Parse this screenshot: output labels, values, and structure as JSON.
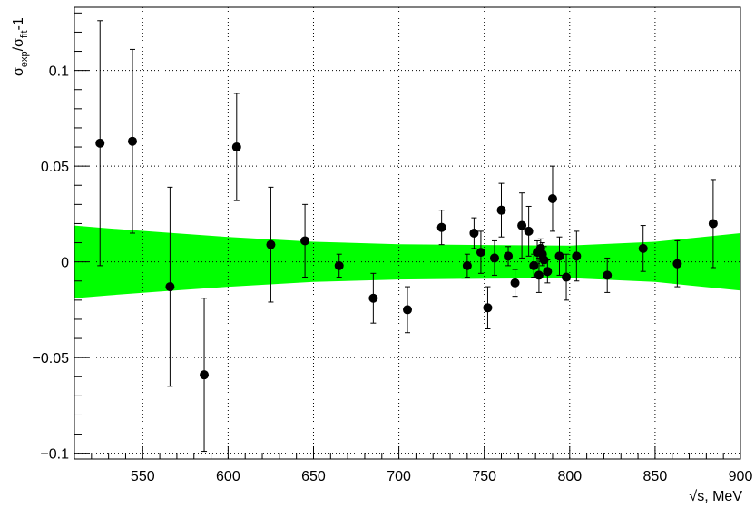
{
  "chart_data": {
    "type": "scatter",
    "xlabel": "√s, MeV",
    "ylabel": "σexp/σfit-1",
    "xlim": [
      510,
      900
    ],
    "ylim": [
      -0.103,
      0.133
    ],
    "grid": true,
    "x_ticks": [
      550,
      600,
      650,
      700,
      750,
      800,
      850,
      900
    ],
    "y_ticks": [
      -0.1,
      -0.05,
      0,
      0.05,
      0.1
    ],
    "x_tick_labels": [
      "550",
      "600",
      "650",
      "700",
      "750",
      "800",
      "850",
      "900"
    ],
    "y_tick_labels": [
      "−0.1",
      "−0.05",
      "0",
      "0.05",
      "0.1"
    ],
    "points": [
      {
        "x": 525,
        "y": 0.062,
        "err": 0.064
      },
      {
        "x": 544,
        "y": 0.063,
        "err": 0.048
      },
      {
        "x": 566,
        "y": -0.013,
        "err": 0.052
      },
      {
        "x": 586,
        "y": -0.059,
        "err": 0.04
      },
      {
        "x": 605,
        "y": 0.06,
        "err": 0.028
      },
      {
        "x": 625,
        "y": 0.009,
        "err": 0.03
      },
      {
        "x": 645,
        "y": 0.011,
        "err": 0.019
      },
      {
        "x": 665,
        "y": -0.002,
        "err": 0.006
      },
      {
        "x": 685,
        "y": -0.019,
        "err": 0.013
      },
      {
        "x": 705,
        "y": -0.025,
        "err": 0.012
      },
      {
        "x": 725,
        "y": 0.018,
        "err": 0.009
      },
      {
        "x": 740,
        "y": -0.002,
        "err": 0.006
      },
      {
        "x": 744,
        "y": 0.015,
        "err": 0.008
      },
      {
        "x": 748,
        "y": 0.005,
        "err": 0.011
      },
      {
        "x": 752,
        "y": -0.024,
        "err": 0.011
      },
      {
        "x": 756,
        "y": 0.002,
        "err": 0.009
      },
      {
        "x": 760,
        "y": 0.027,
        "err": 0.014
      },
      {
        "x": 764,
        "y": 0.003,
        "err": 0.005
      },
      {
        "x": 768,
        "y": -0.011,
        "err": 0.007
      },
      {
        "x": 772,
        "y": 0.019,
        "err": 0.017
      },
      {
        "x": 776,
        "y": 0.016,
        "err": 0.013
      },
      {
        "x": 779,
        "y": -0.002,
        "err": 0.006
      },
      {
        "x": 781,
        "y": 0.005,
        "err": 0.006
      },
      {
        "x": 782,
        "y": -0.007,
        "err": 0.009
      },
      {
        "x": 783,
        "y": 0.007,
        "err": 0.005
      },
      {
        "x": 784,
        "y": 0.004,
        "err": 0.006
      },
      {
        "x": 785,
        "y": 0.001,
        "err": 0.007
      },
      {
        "x": 787,
        "y": -0.005,
        "err": 0.006
      },
      {
        "x": 790,
        "y": 0.033,
        "err": 0.017
      },
      {
        "x": 794,
        "y": 0.003,
        "err": 0.01
      },
      {
        "x": 798,
        "y": -0.008,
        "err": 0.012
      },
      {
        "x": 804,
        "y": 0.003,
        "err": 0.013
      },
      {
        "x": 822,
        "y": -0.007,
        "err": 0.009
      },
      {
        "x": 843,
        "y": 0.007,
        "err": 0.012
      },
      {
        "x": 863,
        "y": -0.001,
        "err": 0.012
      },
      {
        "x": 884,
        "y": 0.02,
        "err": 0.023
      }
    ],
    "band": {
      "color": "#00ff00",
      "x": [
        510,
        530,
        560,
        600,
        650,
        700,
        750,
        800,
        850,
        900
      ],
      "half_width": [
        0.019,
        0.0175,
        0.0155,
        0.013,
        0.0105,
        0.0092,
        0.0088,
        0.0085,
        0.0105,
        0.015
      ]
    },
    "marker_color": "#000000"
  }
}
